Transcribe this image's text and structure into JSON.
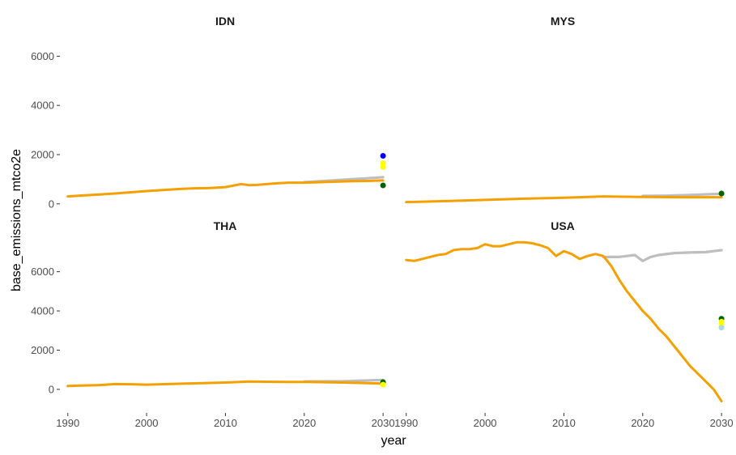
{
  "chart_data": {
    "type": "line",
    "xlabel": "year",
    "ylabel": "base_emissions_mtco2e",
    "grid": false,
    "legend": "none",
    "colors": {
      "baseline": "#bebebe",
      "projection": "#f5a000",
      "target_blue": "#0000ff",
      "target_yellow": "#ffff00",
      "target_green": "#006400",
      "target_lightblue": "#add8e6"
    },
    "x_ticks": [
      1990,
      2000,
      2010,
      2020,
      2030
    ],
    "y_ticks": [
      0,
      2000,
      4000,
      6000
    ],
    "xlim": [
      1989,
      2030.5
    ],
    "rows": [
      {
        "ylim": [
          -600,
          7000
        ]
      },
      {
        "ylim": [
          -1200,
          7800
        ]
      }
    ],
    "panels": [
      {
        "name": "IDN",
        "row": 0,
        "col": 0,
        "series": [
          {
            "key": "baseline",
            "x": [
              2020,
              2022,
              2024,
              2026,
              2028,
              2030
            ],
            "y": [
              880,
              920,
              960,
              1000,
              1040,
              1080
            ]
          },
          {
            "key": "projection",
            "x": [
              1990,
              1992,
              1994,
              1996,
              1998,
              2000,
              2002,
              2004,
              2006,
              2008,
              2010,
              2012,
              2013,
              2014,
              2016,
              2018,
              2020,
              2022,
              2024,
              2026,
              2028,
              2030
            ],
            "y": [
              300,
              340,
              380,
              420,
              470,
              520,
              560,
              600,
              630,
              640,
              680,
              800,
              760,
              770,
              820,
              860,
              860,
              880,
              900,
              920,
              930,
              950
            ]
          }
        ],
        "points": [
          {
            "x": 2030,
            "y": 1950,
            "key": "target_blue"
          },
          {
            "x": 2030,
            "y": 1650,
            "key": "target_yellow"
          },
          {
            "x": 2030,
            "y": 1500,
            "key": "target_yellow"
          },
          {
            "x": 2030,
            "y": 750,
            "key": "target_green"
          }
        ]
      },
      {
        "name": "MYS",
        "row": 0,
        "col": 1,
        "series": [
          {
            "key": "baseline",
            "x": [
              2020,
              2023,
              2026,
              2030
            ],
            "y": [
              320,
              330,
              360,
              410
            ]
          },
          {
            "key": "projection",
            "x": [
              1990,
              1995,
              2000,
              2005,
              2010,
              2015,
              2020,
              2025,
              2030
            ],
            "y": [
              70,
              110,
              160,
              210,
              250,
              300,
              280,
              270,
              270
            ]
          }
        ],
        "points": [
          {
            "x": 2030,
            "y": 420,
            "key": "target_green"
          }
        ]
      },
      {
        "name": "THA",
        "row": 1,
        "col": 0,
        "series": [
          {
            "key": "baseline",
            "x": [
              2020,
              2025,
              2030
            ],
            "y": [
              400,
              420,
              480
            ]
          },
          {
            "key": "projection",
            "x": [
              1990,
              1994,
              1996,
              1998,
              2000,
              2005,
              2010,
              2013,
              2015,
              2018,
              2020,
              2025,
              2030
            ],
            "y": [
              170,
              220,
              270,
              260,
              240,
              300,
              350,
              400,
              390,
              380,
              380,
              350,
              300
            ]
          }
        ],
        "points": [
          {
            "x": 2030,
            "y": 370,
            "key": "target_green"
          },
          {
            "x": 2030,
            "y": 240,
            "key": "target_yellow"
          }
        ]
      },
      {
        "name": "USA",
        "row": 1,
        "col": 1,
        "series": [
          {
            "key": "baseline",
            "x": [
              2015,
              2017,
              2018,
              2019,
              2020,
              2021,
              2022,
              2024,
              2026,
              2028,
              2029,
              2030
            ],
            "y": [
              6750,
              6750,
              6800,
              6850,
              6550,
              6750,
              6850,
              6950,
              6980,
              7000,
              7050,
              7100
            ]
          },
          {
            "key": "projection",
            "x": [
              1990,
              1991,
              1992,
              1993,
              1994,
              1995,
              1996,
              1997,
              1998,
              1999,
              2000,
              2001,
              2002,
              2003,
              2004,
              2005,
              2006,
              2007,
              2008,
              2009,
              2010,
              2011,
              2012,
              2013,
              2014,
              2015,
              2016,
              2017,
              2018,
              2019,
              2020,
              2021,
              2022,
              2023,
              2024,
              2025,
              2026,
              2027,
              2028,
              2029,
              2030
            ],
            "y": [
              6600,
              6550,
              6650,
              6750,
              6850,
              6900,
              7100,
              7150,
              7150,
              7200,
              7400,
              7300,
              7300,
              7400,
              7500,
              7500,
              7450,
              7350,
              7200,
              6800,
              7050,
              6900,
              6650,
              6800,
              6900,
              6800,
              6300,
              5600,
              5000,
              4500,
              4000,
              3600,
              3100,
              2700,
              2200,
              1700,
              1200,
              800,
              400,
              0,
              -600
            ]
          }
        ],
        "points": [
          {
            "x": 2030,
            "y": 3600,
            "key": "target_green"
          },
          {
            "x": 2030,
            "y": 3450,
            "key": "target_yellow"
          },
          {
            "x": 2030,
            "y": 3300,
            "key": "target_yellow"
          },
          {
            "x": 2030,
            "y": 3150,
            "key": "target_lightblue"
          }
        ]
      }
    ]
  }
}
